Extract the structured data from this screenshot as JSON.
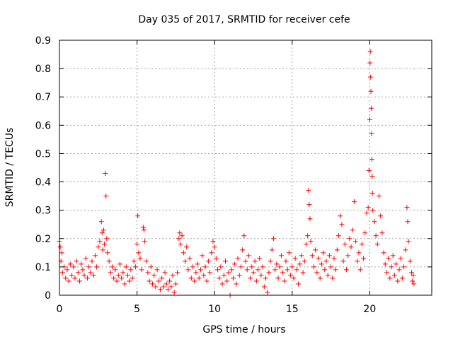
{
  "chart_data": {
    "type": "scatter",
    "title": "Day 035 of 2017, SRMTID for receiver cefe",
    "xlabel": "GPS time / hours",
    "ylabel": "SRMTID / TECUs",
    "xlim": [
      0,
      24
    ],
    "ylim": [
      0,
      0.9
    ],
    "xticks": [
      0,
      5,
      10,
      15,
      20
    ],
    "xtick_labels": [
      "0",
      "5",
      "10",
      "15",
      "20"
    ],
    "yticks": [
      0,
      0.1,
      0.2,
      0.3,
      0.4,
      0.5,
      0.6,
      0.7,
      0.8,
      0.9
    ],
    "ytick_labels": [
      "0",
      "0.1",
      "0.2",
      "0.3",
      "0.4",
      "0.5",
      "0.6",
      "0.7",
      "0.8",
      "0.9"
    ],
    "grid": true,
    "marker": "plus",
    "color": "#ff0000",
    "series": [
      {
        "name": "SRMTID",
        "points": [
          [
            0.0,
            0.19
          ],
          [
            0.05,
            0.17
          ],
          [
            0.1,
            0.12
          ],
          [
            0.15,
            0.15
          ],
          [
            0.2,
            0.08
          ],
          [
            0.3,
            0.1
          ],
          [
            0.4,
            0.06
          ],
          [
            0.5,
            0.09
          ],
          [
            0.6,
            0.05
          ],
          [
            0.7,
            0.11
          ],
          [
            0.8,
            0.07
          ],
          [
            0.9,
            0.1
          ],
          [
            1.0,
            0.06
          ],
          [
            1.1,
            0.12
          ],
          [
            1.2,
            0.08
          ],
          [
            1.3,
            0.05
          ],
          [
            1.4,
            0.11
          ],
          [
            1.5,
            0.09
          ],
          [
            1.6,
            0.07
          ],
          [
            1.7,
            0.13
          ],
          [
            1.8,
            0.06
          ],
          [
            1.9,
            0.1
          ],
          [
            2.0,
            0.08
          ],
          [
            2.1,
            0.12
          ],
          [
            2.2,
            0.07
          ],
          [
            2.3,
            0.14
          ],
          [
            2.4,
            0.1
          ],
          [
            2.5,
            0.17
          ],
          [
            2.6,
            0.19
          ],
          [
            2.7,
            0.26
          ],
          [
            2.75,
            0.22
          ],
          [
            2.8,
            0.16
          ],
          [
            2.85,
            0.23
          ],
          [
            2.9,
            0.18
          ],
          [
            2.95,
            0.43
          ],
          [
            3.0,
            0.35
          ],
          [
            3.05,
            0.2
          ],
          [
            3.1,
            0.15
          ],
          [
            3.2,
            0.12
          ],
          [
            3.3,
            0.08
          ],
          [
            3.4,
            0.1
          ],
          [
            3.5,
            0.06
          ],
          [
            3.6,
            0.09
          ],
          [
            3.7,
            0.05
          ],
          [
            3.8,
            0.07
          ],
          [
            3.9,
            0.11
          ],
          [
            4.0,
            0.06
          ],
          [
            4.1,
            0.08
          ],
          [
            4.2,
            0.04
          ],
          [
            4.3,
            0.1
          ],
          [
            4.4,
            0.07
          ],
          [
            4.5,
            0.05
          ],
          [
            4.6,
            0.09
          ],
          [
            4.7,
            0.06
          ],
          [
            4.8,
            0.12
          ],
          [
            4.9,
            0.1
          ],
          [
            5.0,
            0.18
          ],
          [
            5.05,
            0.28
          ],
          [
            5.1,
            0.15
          ],
          [
            5.2,
            0.13
          ],
          [
            5.3,
            0.09
          ],
          [
            5.4,
            0.24
          ],
          [
            5.45,
            0.23
          ],
          [
            5.5,
            0.19
          ],
          [
            5.6,
            0.12
          ],
          [
            5.7,
            0.08
          ],
          [
            5.8,
            0.05
          ],
          [
            5.9,
            0.1
          ],
          [
            6.0,
            0.04
          ],
          [
            6.1,
            0.07
          ],
          [
            6.2,
            0.03
          ],
          [
            6.3,
            0.09
          ],
          [
            6.4,
            0.05
          ],
          [
            6.5,
            0.02
          ],
          [
            6.6,
            0.06
          ],
          [
            6.7,
            0.03
          ],
          [
            6.8,
            0.08
          ],
          [
            6.9,
            0.04
          ],
          [
            7.0,
            0.02
          ],
          [
            7.1,
            0.05
          ],
          [
            7.2,
            0.03
          ],
          [
            7.3,
            0.07
          ],
          [
            7.4,
            0.01
          ],
          [
            7.5,
            0.04
          ],
          [
            7.6,
            0.08
          ],
          [
            7.7,
            0.2
          ],
          [
            7.75,
            0.22
          ],
          [
            7.8,
            0.18
          ],
          [
            7.9,
            0.21
          ],
          [
            8.0,
            0.15
          ],
          [
            8.1,
            0.12
          ],
          [
            8.2,
            0.17
          ],
          [
            8.3,
            0.09
          ],
          [
            8.4,
            0.13
          ],
          [
            8.5,
            0.06
          ],
          [
            8.6,
            0.1
          ],
          [
            8.7,
            0.05
          ],
          [
            8.8,
            0.08
          ],
          [
            8.9,
            0.11
          ],
          [
            9.0,
            0.06
          ],
          [
            9.1,
            0.09
          ],
          [
            9.2,
            0.14
          ],
          [
            9.3,
            0.07
          ],
          [
            9.4,
            0.1
          ],
          [
            9.5,
            0.05
          ],
          [
            9.6,
            0.12
          ],
          [
            9.7,
            0.08
          ],
          [
            9.8,
            0.15
          ],
          [
            9.9,
            0.19
          ],
          [
            10.0,
            0.17
          ],
          [
            10.1,
            0.13
          ],
          [
            10.2,
            0.09
          ],
          [
            10.3,
            0.06
          ],
          [
            10.4,
            0.1
          ],
          [
            10.5,
            0.04
          ],
          [
            10.6,
            0.07
          ],
          [
            10.7,
            0.12
          ],
          [
            10.8,
            0.05
          ],
          [
            10.9,
            0.08
          ],
          [
            11.0,
            0.0
          ],
          [
            11.1,
            0.09
          ],
          [
            11.2,
            0.06
          ],
          [
            11.3,
            0.11
          ],
          [
            11.4,
            0.04
          ],
          [
            11.5,
            0.13
          ],
          [
            11.6,
            0.07
          ],
          [
            11.7,
            0.1
          ],
          [
            11.8,
            0.16
          ],
          [
            11.9,
            0.21
          ],
          [
            12.0,
            0.12
          ],
          [
            12.1,
            0.09
          ],
          [
            12.2,
            0.14
          ],
          [
            12.3,
            0.06
          ],
          [
            12.4,
            0.1
          ],
          [
            12.5,
            0.08
          ],
          [
            12.6,
            0.12
          ],
          [
            12.7,
            0.05
          ],
          [
            12.8,
            0.09
          ],
          [
            12.9,
            0.13
          ],
          [
            13.0,
            0.07
          ],
          [
            13.1,
            0.1
          ],
          [
            13.2,
            0.03
          ],
          [
            13.3,
            0.06
          ],
          [
            13.4,
            0.01
          ],
          [
            13.5,
            0.08
          ],
          [
            13.6,
            0.12
          ],
          [
            13.7,
            0.16
          ],
          [
            13.8,
            0.2
          ],
          [
            13.9,
            0.09
          ],
          [
            14.0,
            0.11
          ],
          [
            14.1,
            0.06
          ],
          [
            14.2,
            0.1
          ],
          [
            14.3,
            0.14
          ],
          [
            14.4,
            0.08
          ],
          [
            14.5,
            0.05
          ],
          [
            14.6,
            0.12
          ],
          [
            14.7,
            0.09
          ],
          [
            14.8,
            0.15
          ],
          [
            14.9,
            0.07
          ],
          [
            15.0,
            0.1
          ],
          [
            15.1,
            0.06
          ],
          [
            15.2,
            0.13
          ],
          [
            15.3,
            0.09
          ],
          [
            15.4,
            0.04
          ],
          [
            15.5,
            0.11
          ],
          [
            15.6,
            0.14
          ],
          [
            15.7,
            0.08
          ],
          [
            15.8,
            0.12
          ],
          [
            15.9,
            0.18
          ],
          [
            16.0,
            0.21
          ],
          [
            16.05,
            0.37
          ],
          [
            16.1,
            0.32
          ],
          [
            16.15,
            0.27
          ],
          [
            16.2,
            0.19
          ],
          [
            16.3,
            0.14
          ],
          [
            16.4,
            0.1
          ],
          [
            16.5,
            0.16
          ],
          [
            16.6,
            0.08
          ],
          [
            16.7,
            0.13
          ],
          [
            16.8,
            0.06
          ],
          [
            16.9,
            0.11
          ],
          [
            17.0,
            0.15
          ],
          [
            17.1,
            0.09
          ],
          [
            17.2,
            0.12
          ],
          [
            17.3,
            0.07
          ],
          [
            17.4,
            0.14
          ],
          [
            17.5,
            0.1
          ],
          [
            17.6,
            0.06
          ],
          [
            17.7,
            0.13
          ],
          [
            17.8,
            0.09
          ],
          [
            17.9,
            0.16
          ],
          [
            18.0,
            0.21
          ],
          [
            18.1,
            0.28
          ],
          [
            18.2,
            0.25
          ],
          [
            18.3,
            0.12
          ],
          [
            18.4,
            0.18
          ],
          [
            18.5,
            0.09
          ],
          [
            18.6,
            0.14
          ],
          [
            18.7,
            0.2
          ],
          [
            18.8,
            0.17
          ],
          [
            18.9,
            0.23
          ],
          [
            19.0,
            0.33
          ],
          [
            19.1,
            0.19
          ],
          [
            19.2,
            0.12
          ],
          [
            19.3,
            0.15
          ],
          [
            19.4,
            0.09
          ],
          [
            19.5,
            0.18
          ],
          [
            19.6,
            0.13
          ],
          [
            19.7,
            0.22
          ],
          [
            19.8,
            0.29
          ],
          [
            19.9,
            0.31
          ],
          [
            19.95,
            0.44
          ],
          [
            20.0,
            0.62
          ],
          [
            20.02,
            0.82
          ],
          [
            20.04,
            0.86
          ],
          [
            20.06,
            0.77
          ],
          [
            20.08,
            0.72
          ],
          [
            20.1,
            0.66
          ],
          [
            20.12,
            0.57
          ],
          [
            20.14,
            0.48
          ],
          [
            20.16,
            0.42
          ],
          [
            20.18,
            0.36
          ],
          [
            20.2,
            0.3
          ],
          [
            20.3,
            0.26
          ],
          [
            20.4,
            0.21
          ],
          [
            20.5,
            0.18
          ],
          [
            20.6,
            0.35
          ],
          [
            20.7,
            0.28
          ],
          [
            20.8,
            0.22
          ],
          [
            20.9,
            0.15
          ],
          [
            21.0,
            0.11
          ],
          [
            21.1,
            0.08
          ],
          [
            21.2,
            0.13
          ],
          [
            21.3,
            0.06
          ],
          [
            21.4,
            0.1
          ],
          [
            21.5,
            0.14
          ],
          [
            21.6,
            0.07
          ],
          [
            21.7,
            0.11
          ],
          [
            21.8,
            0.05
          ],
          [
            21.9,
            0.09
          ],
          [
            22.0,
            0.13
          ],
          [
            22.1,
            0.06
          ],
          [
            22.2,
            0.1
          ],
          [
            22.3,
            0.16
          ],
          [
            22.4,
            0.31
          ],
          [
            22.45,
            0.26
          ],
          [
            22.5,
            0.19
          ],
          [
            22.6,
            0.12
          ],
          [
            22.7,
            0.08
          ],
          [
            22.75,
            0.05
          ],
          [
            22.8,
            0.07
          ],
          [
            22.85,
            0.04
          ]
        ]
      }
    ]
  }
}
